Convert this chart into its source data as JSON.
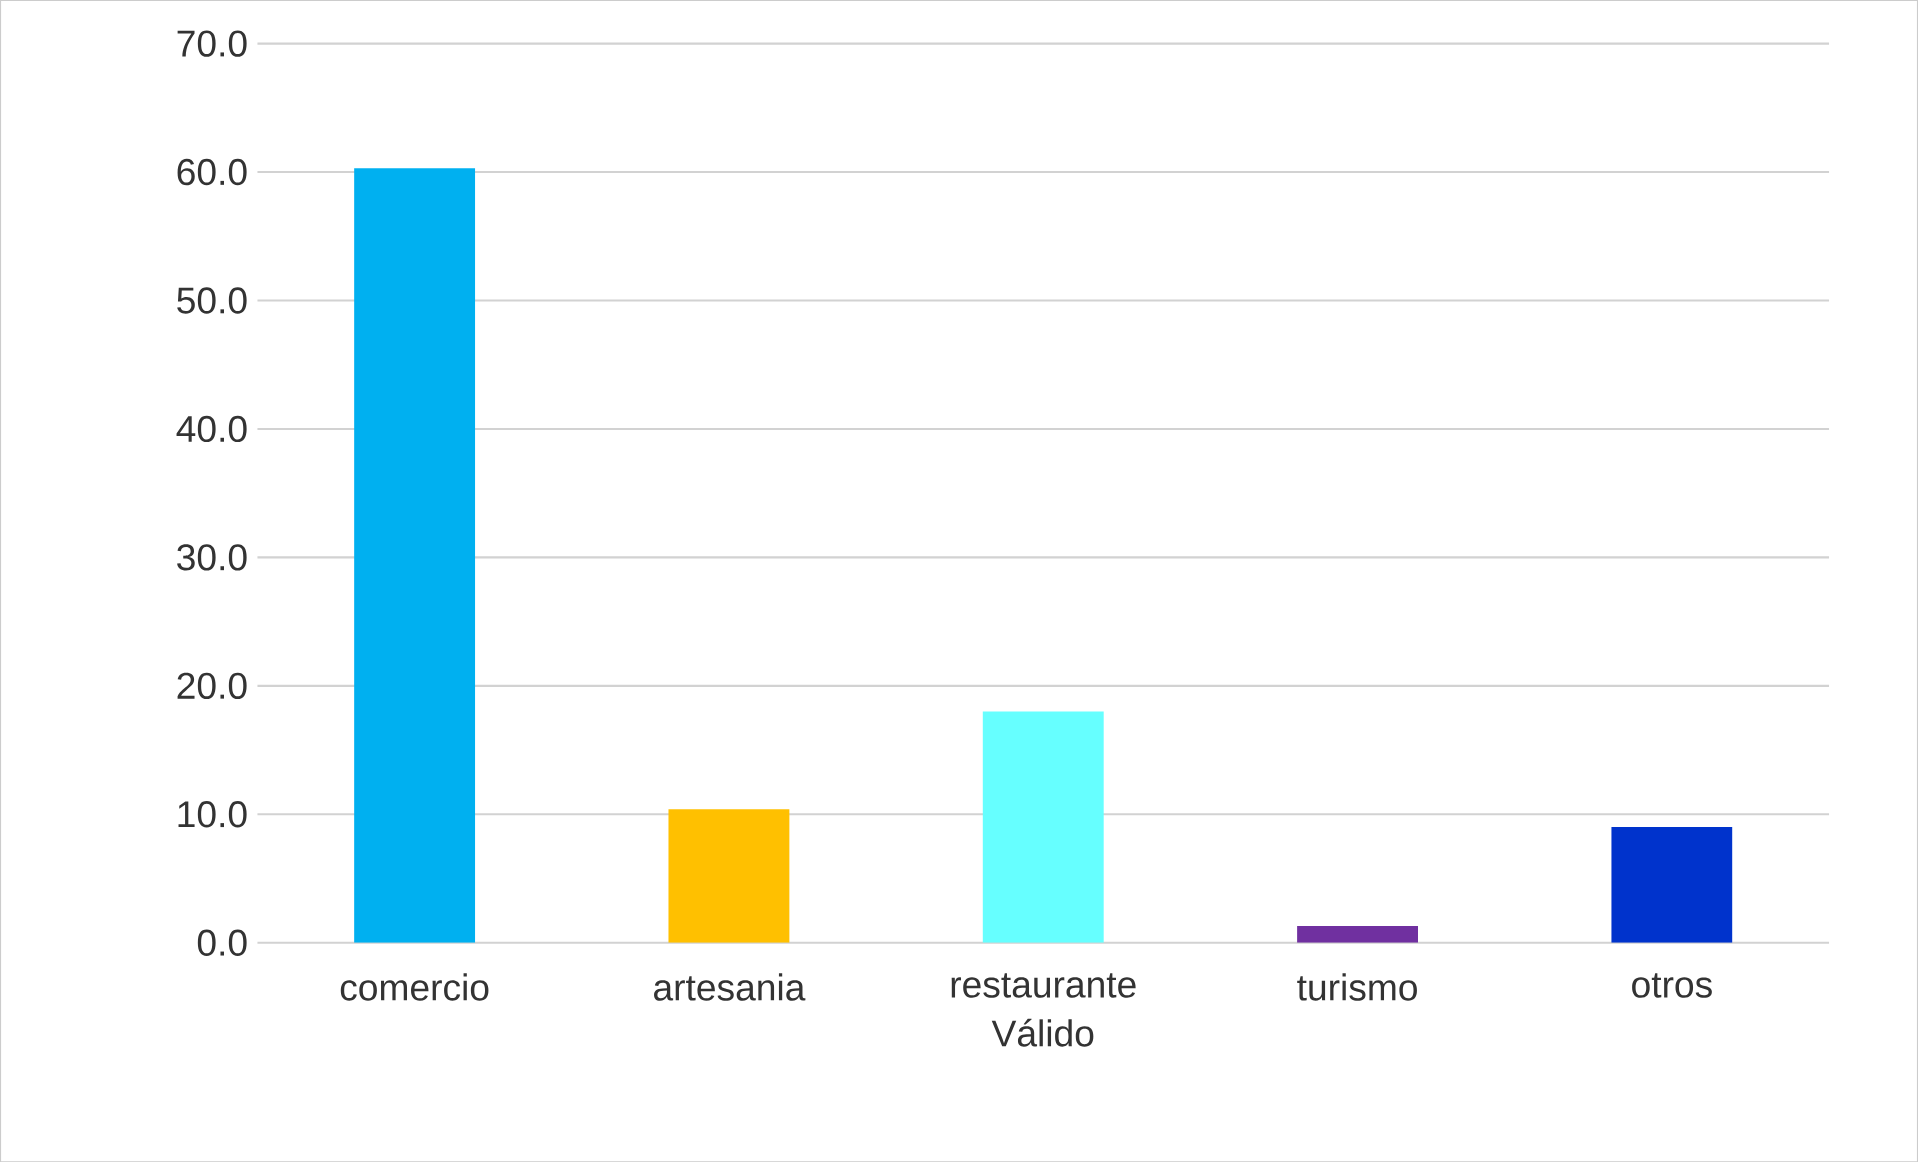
{
  "chart_data": {
    "type": "bar",
    "xlabel": "Válido",
    "categories": [
      "comercio",
      "artesania",
      "restaurante",
      "turismo",
      "otros"
    ],
    "values": [
      60.3,
      10.4,
      18.0,
      1.3,
      9.0
    ],
    "colors": [
      "#00b0f0",
      "#ffc000",
      "#66ffff",
      "#7030a0",
      "#0033cc"
    ],
    "ylim": [
      0,
      70
    ],
    "yticks": [
      {
        "value": 0,
        "label": "0.0"
      },
      {
        "value": 10,
        "label": "10.0"
      },
      {
        "value": 20,
        "label": "20.0"
      },
      {
        "value": 30,
        "label": "30.0"
      },
      {
        "value": 40,
        "label": "40.0"
      },
      {
        "value": 50,
        "label": "50.0"
      },
      {
        "value": 60,
        "label": "60.0"
      },
      {
        "value": 70,
        "label": "70.0"
      }
    ],
    "grid": "y"
  }
}
